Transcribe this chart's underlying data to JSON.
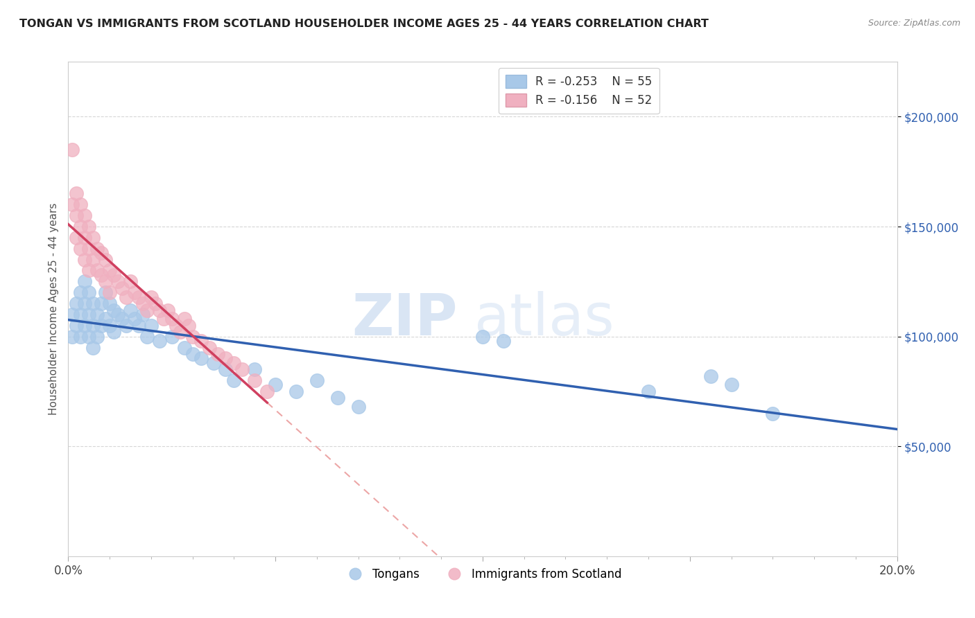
{
  "title": "TONGAN VS IMMIGRANTS FROM SCOTLAND HOUSEHOLDER INCOME AGES 25 - 44 YEARS CORRELATION CHART",
  "source": "Source: ZipAtlas.com",
  "ylabel": "Householder Income Ages 25 - 44 years",
  "xlim": [
    0.0,
    0.2
  ],
  "ylim": [
    0,
    225000
  ],
  "yticks": [
    50000,
    100000,
    150000,
    200000
  ],
  "ytick_labels": [
    "$50,000",
    "$100,000",
    "$150,000",
    "$200,000"
  ],
  "legend_blue_r": "R = -0.253",
  "legend_blue_n": "N = 55",
  "legend_pink_r": "R = -0.156",
  "legend_pink_n": "N = 52",
  "legend_blue_label": "Tongans",
  "legend_pink_label": "Immigrants from Scotland",
  "blue_color": "#a8c8e8",
  "pink_color": "#f0b0c0",
  "blue_line_color": "#3060b0",
  "pink_line_color": "#d04060",
  "pink_dash_color": "#e89090",
  "watermark_zip": "ZIP",
  "watermark_atlas": "atlas",
  "blue_x": [
    0.001,
    0.001,
    0.002,
    0.002,
    0.003,
    0.003,
    0.003,
    0.004,
    0.004,
    0.004,
    0.005,
    0.005,
    0.005,
    0.006,
    0.006,
    0.006,
    0.007,
    0.007,
    0.008,
    0.008,
    0.009,
    0.009,
    0.01,
    0.01,
    0.011,
    0.011,
    0.012,
    0.013,
    0.014,
    0.015,
    0.016,
    0.017,
    0.018,
    0.019,
    0.02,
    0.022,
    0.025,
    0.028,
    0.03,
    0.032,
    0.035,
    0.038,
    0.04,
    0.045,
    0.05,
    0.055,
    0.06,
    0.065,
    0.07,
    0.1,
    0.105,
    0.14,
    0.155,
    0.16,
    0.17
  ],
  "blue_y": [
    110000,
    100000,
    115000,
    105000,
    120000,
    110000,
    100000,
    125000,
    115000,
    105000,
    120000,
    110000,
    100000,
    115000,
    105000,
    95000,
    110000,
    100000,
    115000,
    105000,
    120000,
    108000,
    115000,
    105000,
    112000,
    102000,
    110000,
    108000,
    105000,
    112000,
    108000,
    105000,
    110000,
    100000,
    105000,
    98000,
    100000,
    95000,
    92000,
    90000,
    88000,
    85000,
    80000,
    85000,
    78000,
    75000,
    80000,
    72000,
    68000,
    100000,
    98000,
    75000,
    82000,
    78000,
    65000
  ],
  "pink_x": [
    0.001,
    0.001,
    0.002,
    0.002,
    0.002,
    0.003,
    0.003,
    0.003,
    0.004,
    0.004,
    0.004,
    0.005,
    0.005,
    0.005,
    0.006,
    0.006,
    0.007,
    0.007,
    0.008,
    0.008,
    0.009,
    0.009,
    0.01,
    0.01,
    0.011,
    0.012,
    0.013,
    0.014,
    0.015,
    0.016,
    0.017,
    0.018,
    0.019,
    0.02,
    0.021,
    0.022,
    0.023,
    0.024,
    0.025,
    0.026,
    0.027,
    0.028,
    0.029,
    0.03,
    0.032,
    0.034,
    0.036,
    0.038,
    0.04,
    0.042,
    0.045,
    0.048
  ],
  "pink_y": [
    185000,
    160000,
    165000,
    155000,
    145000,
    160000,
    150000,
    140000,
    155000,
    145000,
    135000,
    150000,
    140000,
    130000,
    145000,
    135000,
    140000,
    130000,
    138000,
    128000,
    135000,
    125000,
    130000,
    120000,
    128000,
    125000,
    122000,
    118000,
    125000,
    120000,
    118000,
    115000,
    112000,
    118000,
    115000,
    112000,
    108000,
    112000,
    108000,
    105000,
    102000,
    108000,
    105000,
    100000,
    98000,
    95000,
    92000,
    90000,
    88000,
    85000,
    80000,
    75000
  ]
}
